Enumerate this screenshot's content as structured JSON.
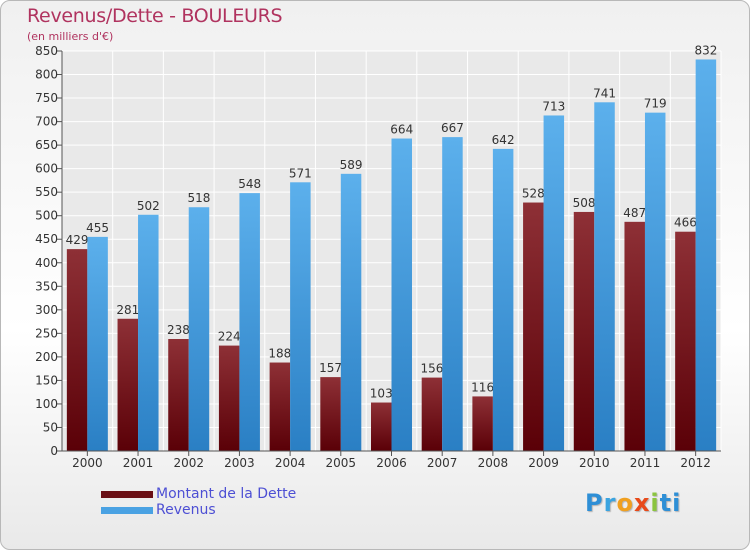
{
  "chart_data": {
    "type": "bar",
    "title": "Revenus/Dette - BOULEURS",
    "subtitle": "(en milliers d'€)",
    "categories": [
      "2000",
      "2001",
      "2002",
      "2003",
      "2004",
      "2005",
      "2006",
      "2007",
      "2008",
      "2009",
      "2010",
      "2011",
      "2012"
    ],
    "series": [
      {
        "name": "Montant de la Dette",
        "color": "#7a1f24",
        "values": [
          429,
          281,
          238,
          224,
          188,
          157,
          103,
          156,
          116,
          528,
          508,
          487,
          466
        ]
      },
      {
        "name": "Revenus",
        "color": "#4aa2e3",
        "values": [
          455,
          502,
          518,
          548,
          571,
          589,
          664,
          667,
          642,
          713,
          741,
          719,
          832
        ]
      }
    ],
    "ylim": [
      0,
      850
    ],
    "yticks": [
      0,
      50,
      100,
      150,
      200,
      250,
      300,
      350,
      400,
      450,
      500,
      550,
      600,
      650,
      700,
      750,
      800,
      850
    ],
    "grid": true,
    "legend": "bottom-left"
  },
  "logo": {
    "text": "Proxiti",
    "letters": [
      "P",
      "r",
      "o",
      "x",
      "i",
      "ti"
    ]
  }
}
